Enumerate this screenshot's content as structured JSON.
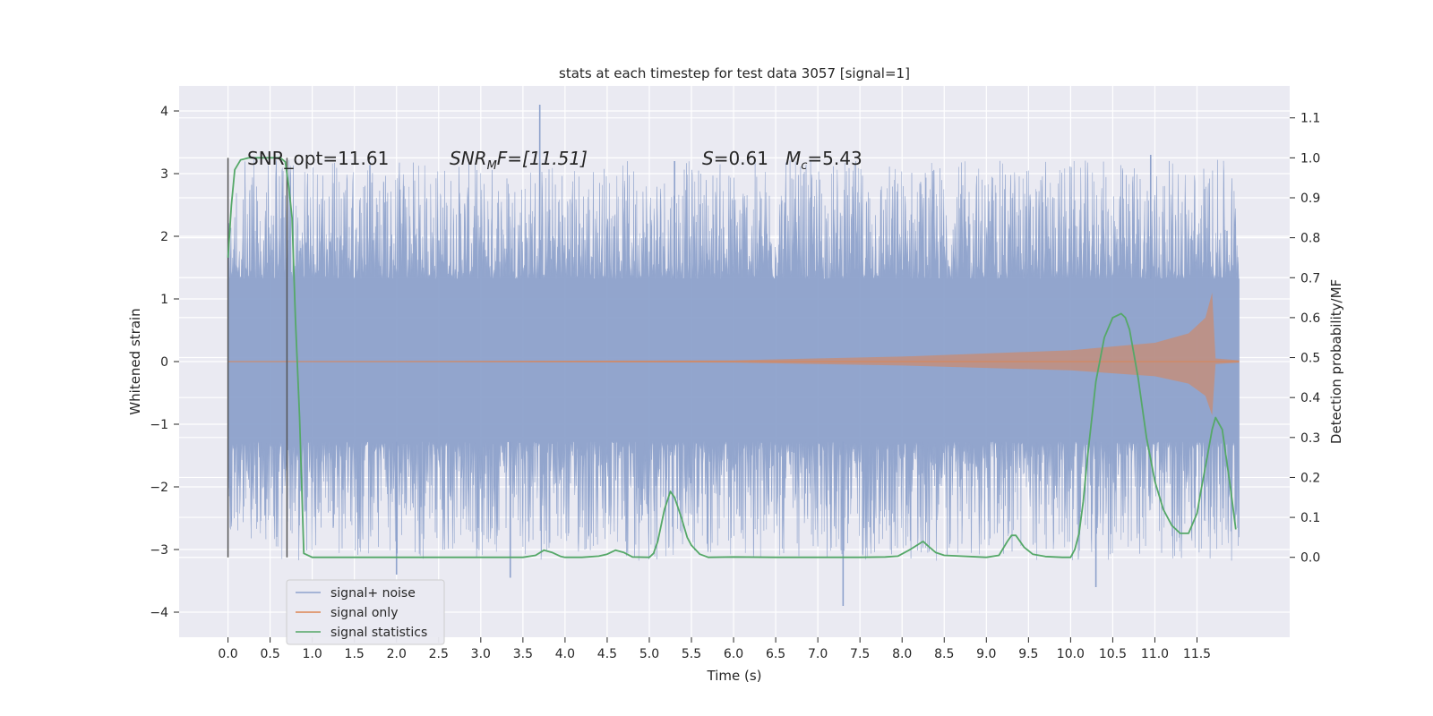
{
  "chart_data": {
    "type": "line",
    "title": "stats at each timestep for test data 3057 [signal=1]",
    "xlabel": "Time (s)",
    "ylabel": "Whitened strain",
    "ylabel_right": "Detection probability/MF",
    "xlim": [
      -0.58,
      12.6
    ],
    "ylim": [
      -4.4,
      4.4
    ],
    "ylim_right": [
      -0.2,
      1.18
    ],
    "x_ticks": [
      0.0,
      0.5,
      1.0,
      1.5,
      2.0,
      2.5,
      3.0,
      3.5,
      4.0,
      4.5,
      5.0,
      5.5,
      6.0,
      6.5,
      7.0,
      7.5,
      8.0,
      8.5,
      9.0,
      9.5,
      10.0,
      10.5,
      11.0,
      11.5
    ],
    "x_tick_labels": [
      "0.0",
      "0.5",
      "1.0",
      "1.5",
      "2.0",
      "2.5",
      "3.0",
      "3.5",
      "4.0",
      "4.5",
      "5.0",
      "5.5",
      "6.0",
      "6.5",
      "7.0",
      "7.5",
      "8.0",
      "8.5",
      "9.0",
      "9.5",
      "10.0",
      "10.5",
      "11.0",
      "11.5"
    ],
    "y_ticks": [
      -4,
      -3,
      -2,
      -1,
      0,
      1,
      2,
      3,
      4
    ],
    "y_tick_labels": [
      "−4",
      "−3",
      "−2",
      "−1",
      "0",
      "1",
      "2",
      "3",
      "4"
    ],
    "y_ticks_right": [
      0.0,
      0.1,
      0.2,
      0.3,
      0.4,
      0.5,
      0.6,
      0.7,
      0.8,
      0.9,
      1.0,
      1.1
    ],
    "y_tick_labels_right": [
      "0.0",
      "0.1",
      "0.2",
      "0.3",
      "0.4",
      "0.5",
      "0.6",
      "0.7",
      "0.8",
      "0.9",
      "1.0",
      "1.1"
    ],
    "grid": true,
    "legend_position": "lower-left",
    "annotations": {
      "snr_opt": "SNR_opt=11.61",
      "snr_mf_main": "SNR",
      "snr_mf_sub": "M",
      "snr_mf_rest": "F=[11.51]",
      "s_var": "S",
      "s_rest": "=0.61",
      "mc_var": "M",
      "mc_sub": "c",
      "mc_rest": "=5.43"
    },
    "vertical_lines_x": [
      0.0,
      0.7
    ],
    "series": [
      {
        "name": "signal+ noise",
        "color": "#8ea2cc",
        "band_lower": -1.28,
        "band_upper": 1.32,
        "x_range": [
          0.0,
          12.0
        ],
        "spike_peaks": [
          {
            "x": 3.7,
            "y": 4.1
          },
          {
            "x": 10.95,
            "y": 3.3
          },
          {
            "x": 5.3,
            "y": 3.2
          },
          {
            "x": 7.3,
            "y": -3.9
          },
          {
            "x": 10.3,
            "y": -3.6
          },
          {
            "x": 3.35,
            "y": -3.45
          },
          {
            "x": 2.0,
            "y": -3.4
          }
        ]
      },
      {
        "name": "signal only",
        "color": "#dd8452",
        "envelope": [
          {
            "x": 0.0,
            "y": 0.0
          },
          {
            "x": 6.0,
            "y": 0.02
          },
          {
            "x": 8.0,
            "y": 0.08
          },
          {
            "x": 10.0,
            "y": 0.18
          },
          {
            "x": 11.0,
            "y": 0.3
          },
          {
            "x": 11.4,
            "y": 0.45
          },
          {
            "x": 11.6,
            "y": 0.7
          },
          {
            "x": 11.68,
            "y": 1.1
          },
          {
            "x": 11.72,
            "y": 0.05
          },
          {
            "x": 12.0,
            "y": 0.02
          }
        ]
      },
      {
        "name": "signal statistics",
        "color": "#55a868",
        "x": [
          0.0,
          0.04,
          0.08,
          0.15,
          0.25,
          0.4,
          0.55,
          0.62,
          0.68,
          0.72,
          0.76,
          0.8,
          0.85,
          0.9,
          1.0,
          1.5,
          2.0,
          2.5,
          3.0,
          3.5,
          3.65,
          3.75,
          3.85,
          3.95,
          4.0,
          4.2,
          4.4,
          4.5,
          4.6,
          4.7,
          4.8,
          5.0,
          5.05,
          5.1,
          5.18,
          5.25,
          5.3,
          5.38,
          5.45,
          5.5,
          5.6,
          5.7,
          6.0,
          6.5,
          7.0,
          7.5,
          7.8,
          7.95,
          8.1,
          8.25,
          8.3,
          8.4,
          8.5,
          9.0,
          9.15,
          9.25,
          9.3,
          9.35,
          9.45,
          9.55,
          9.7,
          9.9,
          10.0,
          10.05,
          10.1,
          10.15,
          10.2,
          10.3,
          10.4,
          10.5,
          10.6,
          10.65,
          10.7,
          10.8,
          10.9,
          11.0,
          11.1,
          11.2,
          11.3,
          11.4,
          11.5,
          11.55,
          11.62,
          11.68,
          11.72,
          11.8,
          11.9,
          11.96
        ],
        "y": [
          0.75,
          0.88,
          0.97,
          0.995,
          1.0,
          1.0,
          1.0,
          1.0,
          0.99,
          0.93,
          0.85,
          0.6,
          0.35,
          0.01,
          0.0,
          0.0,
          0.0,
          0.0,
          0.0,
          0.0,
          0.005,
          0.018,
          0.012,
          0.002,
          0.0,
          0.0,
          0.003,
          0.008,
          0.018,
          0.012,
          0.001,
          0.0,
          0.01,
          0.04,
          0.12,
          0.165,
          0.15,
          0.1,
          0.05,
          0.03,
          0.008,
          0.0,
          0.001,
          0.0,
          0.0,
          0.0,
          0.001,
          0.003,
          0.02,
          0.04,
          0.03,
          0.012,
          0.005,
          0.0,
          0.005,
          0.04,
          0.055,
          0.055,
          0.025,
          0.008,
          0.002,
          0.0,
          0.0,
          0.02,
          0.06,
          0.14,
          0.25,
          0.44,
          0.55,
          0.6,
          0.61,
          0.6,
          0.57,
          0.45,
          0.3,
          0.19,
          0.12,
          0.08,
          0.06,
          0.06,
          0.11,
          0.17,
          0.25,
          0.32,
          0.35,
          0.32,
          0.17,
          0.07
        ]
      }
    ]
  }
}
